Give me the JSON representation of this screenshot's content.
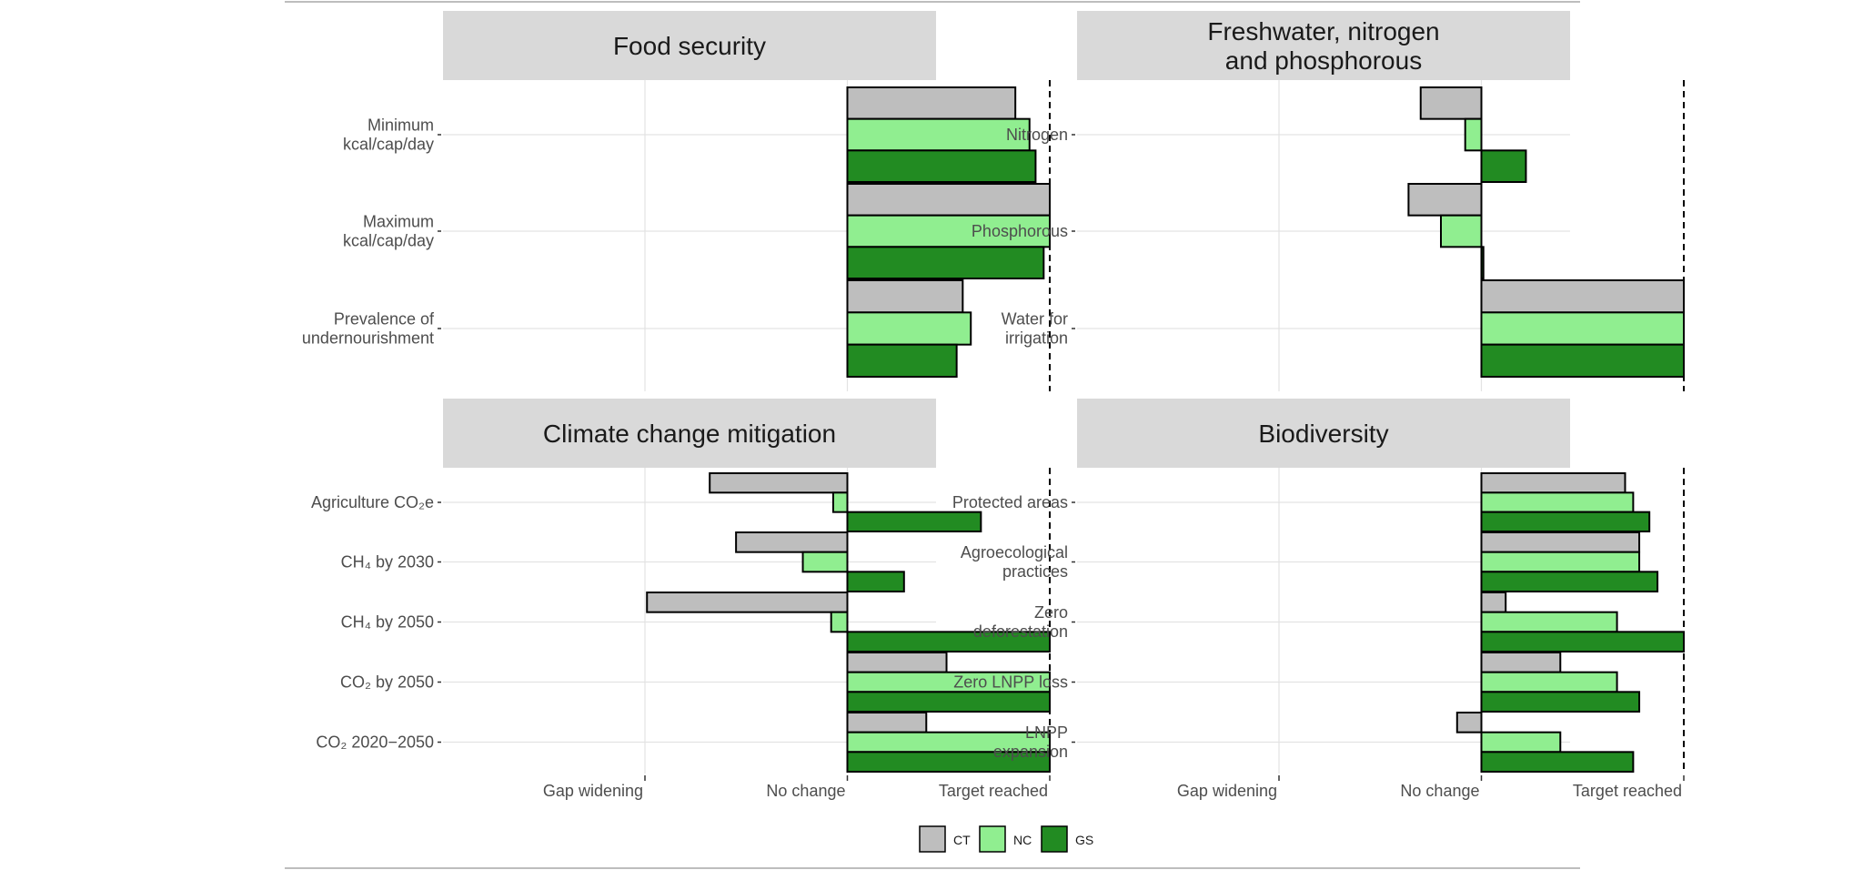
{
  "legend": [
    {
      "key": "CT",
      "label": "CT",
      "color": "#bebebe"
    },
    {
      "key": "NC",
      "label": "NC",
      "color": "#90ee90"
    },
    {
      "key": "GS",
      "label": "GS",
      "color": "#228b22"
    }
  ],
  "chart_data": [
    {
      "type": "bar",
      "orientation": "horizontal",
      "title": "Food security",
      "title_lines": [
        "Food security"
      ],
      "categories": [
        {
          "label_lines": [
            "Minimum",
            "kcal/cap/day"
          ]
        },
        {
          "label_lines": [
            "Maximum",
            "kcal/cap/day"
          ]
        },
        {
          "label_lines": [
            "Prevalence of",
            "undernourishment"
          ]
        }
      ],
      "series": [
        {
          "name": "CT",
          "values": [
            0.83,
            1.0,
            0.57
          ]
        },
        {
          "name": "NC",
          "values": [
            0.9,
            1.0,
            0.61
          ]
        },
        {
          "name": "GS",
          "values": [
            0.93,
            0.97,
            0.54
          ]
        }
      ],
      "xlim": [
        -1,
        1
      ],
      "target_line": 1,
      "show_x_ticks": false,
      "grid": true
    },
    {
      "type": "bar",
      "orientation": "horizontal",
      "title": "Freshwater, nitrogen and phosphorous",
      "title_lines": [
        "Freshwater, nitrogen",
        "and phosphorous"
      ],
      "categories": [
        {
          "label_lines": [
            "Nitrogen"
          ]
        },
        {
          "label_lines": [
            "Phosphorous"
          ]
        },
        {
          "label_lines": [
            "Water for",
            "irrigation"
          ]
        }
      ],
      "series": [
        {
          "name": "CT",
          "values": [
            -0.3,
            -0.36,
            1.0
          ]
        },
        {
          "name": "NC",
          "values": [
            -0.08,
            -0.2,
            1.0
          ]
        },
        {
          "name": "GS",
          "values": [
            0.22,
            0.01,
            1.0
          ]
        }
      ],
      "xlim": [
        -1,
        1
      ],
      "target_line": 1,
      "show_x_ticks": false,
      "grid": true
    },
    {
      "type": "bar",
      "orientation": "horizontal",
      "title": "Climate change mitigation",
      "title_lines": [
        "Climate change mitigation"
      ],
      "categories": [
        {
          "label_lines": [
            "Agriculture CO₂e"
          ]
        },
        {
          "label_lines": [
            "CH₄ by 2030"
          ]
        },
        {
          "label_lines": [
            "CH₄ by 2050"
          ]
        },
        {
          "label_lines": [
            "CO₂ by 2050"
          ]
        },
        {
          "label_lines": [
            "CO₂ 2020−2050"
          ]
        }
      ],
      "series": [
        {
          "name": "CT",
          "values": [
            -0.68,
            -0.55,
            -0.99,
            0.49,
            0.39
          ]
        },
        {
          "name": "NC",
          "values": [
            -0.07,
            -0.22,
            -0.08,
            1.0,
            1.0
          ]
        },
        {
          "name": "GS",
          "values": [
            0.66,
            0.28,
            1.0,
            1.0,
            1.0
          ]
        }
      ],
      "xlim": [
        -1,
        1
      ],
      "target_line": 1,
      "x_ticks": [
        {
          "value": -1,
          "label": "Gap widening"
        },
        {
          "value": 0,
          "label": "No change"
        },
        {
          "value": 1,
          "label": "Target reached"
        }
      ],
      "show_x_ticks": true,
      "grid": true
    },
    {
      "type": "bar",
      "orientation": "horizontal",
      "title": "Biodiversity",
      "title_lines": [
        "Biodiversity"
      ],
      "categories": [
        {
          "label_lines": [
            "Protected areas"
          ]
        },
        {
          "label_lines": [
            "Agroecological",
            "practices"
          ]
        },
        {
          "label_lines": [
            "Zero",
            "deforestation"
          ]
        },
        {
          "label_lines": [
            "Zero LNPP loss"
          ]
        },
        {
          "label_lines": [
            "LNPP",
            "expansion"
          ]
        }
      ],
      "series": [
        {
          "name": "CT",
          "values": [
            0.71,
            0.78,
            0.12,
            0.39,
            -0.12
          ]
        },
        {
          "name": "NC",
          "values": [
            0.75,
            0.78,
            0.67,
            0.67,
            0.39
          ]
        },
        {
          "name": "GS",
          "values": [
            0.83,
            0.87,
            1.0,
            0.78,
            0.75
          ]
        }
      ],
      "xlim": [
        -1,
        1
      ],
      "target_line": 1,
      "x_ticks": [
        {
          "value": -1,
          "label": "Gap widening"
        },
        {
          "value": 0,
          "label": "No change"
        },
        {
          "value": 1,
          "label": "Target reached"
        }
      ],
      "show_x_ticks": true,
      "grid": true
    }
  ]
}
